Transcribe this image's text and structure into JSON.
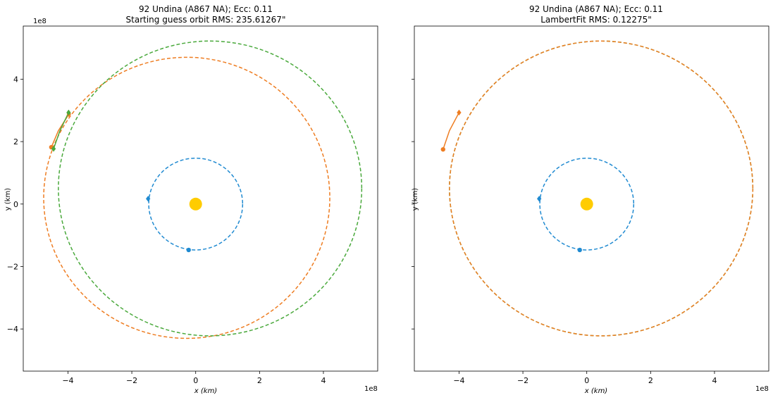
{
  "chart_data": [
    {
      "type": "scatter",
      "title_line1": "92 Undina (A867 NA); Ecc: 0.11",
      "title_line2": "Starting guess orbit RMS: 235.61267\"",
      "xlabel": "x (km)",
      "ylabel": "y (km)",
      "x_multiplier": "1e8",
      "y_multiplier": "1e8",
      "xlim": [
        -5.4,
        5.7
      ],
      "ylim": [
        -5.35,
        5.7
      ],
      "x_ticks": [
        -4,
        -2,
        0,
        2,
        4
      ],
      "y_ticks": [
        -4,
        -2,
        0,
        2,
        4
      ],
      "x_tick_labels": [
        "−4",
        "−2",
        "0",
        "2",
        "4"
      ],
      "y_tick_labels": [
        "−4",
        "−2",
        "0",
        "2",
        "4"
      ],
      "y_tick_labels_shown": true,
      "grid": false,
      "sun": {
        "x": 0,
        "y": 0,
        "color": "#FFCC00"
      },
      "orbits": [
        {
          "color": "#1f8ad1",
          "cx": 0,
          "cy": 0,
          "a": 1.47,
          "b": 1.47
        },
        {
          "color": "#ee7d22",
          "cx": -0.28,
          "cy": 0.2,
          "a": 4.48,
          "b": 4.5
        },
        {
          "color": "#4aa93c",
          "cx": 0.45,
          "cy": 0.5,
          "a": 4.75,
          "b": 4.72
        }
      ],
      "arcs": [
        {
          "color": "#ee7d22",
          "points": [
            [
              -4.52,
              1.82
            ],
            [
              -4.3,
              2.35
            ],
            [
              -3.97,
              2.88
            ]
          ]
        },
        {
          "color": "#4aa93c",
          "points": [
            [
              -4.45,
              1.77
            ],
            [
              -4.25,
              2.35
            ],
            [
              -3.98,
              2.93
            ]
          ]
        }
      ],
      "markers": [
        {
          "color": "#1f8ad1",
          "x": -1.49,
          "y": 0.17,
          "shape": "diamond"
        },
        {
          "color": "#1f8ad1",
          "x": -0.22,
          "y": -1.47,
          "shape": "circle"
        },
        {
          "color": "#ee7d22",
          "x": -3.97,
          "y": 2.88,
          "shape": "diamond"
        },
        {
          "color": "#4aa93c",
          "x": -3.98,
          "y": 2.93,
          "shape": "diamond"
        },
        {
          "color": "#ee7d22",
          "x": -4.52,
          "y": 1.82,
          "shape": "circle"
        },
        {
          "color": "#4aa93c",
          "x": -4.45,
          "y": 1.77,
          "shape": "diamond"
        }
      ]
    },
    {
      "type": "scatter",
      "title_line1": "92 Undina (A867 NA); Ecc: 0.11",
      "title_line2": "LambertFit RMS: 0.12275\"",
      "xlabel": "x (km)",
      "ylabel": "y (km)",
      "x_multiplier": "1e8",
      "y_multiplier": "",
      "xlim": [
        -5.4,
        5.7
      ],
      "ylim": [
        -5.35,
        5.7
      ],
      "x_ticks": [
        -4,
        -2,
        0,
        2,
        4
      ],
      "y_ticks": [
        -4,
        -2,
        0,
        2,
        4
      ],
      "x_tick_labels": [
        "−4",
        "−2",
        "0",
        "2",
        "4"
      ],
      "y_tick_labels": [],
      "y_tick_labels_shown": false,
      "grid": false,
      "sun": {
        "x": 0,
        "y": 0,
        "color": "#FFCC00"
      },
      "orbits": [
        {
          "color": "#1f8ad1",
          "cx": 0,
          "cy": 0,
          "a": 1.47,
          "b": 1.47
        },
        {
          "color": "#4aa93c",
          "cx": 0.45,
          "cy": 0.5,
          "a": 4.75,
          "b": 4.72
        },
        {
          "color": "#ee7d22",
          "cx": 0.45,
          "cy": 0.5,
          "a": 4.75,
          "b": 4.72
        }
      ],
      "arcs": [
        {
          "color": "#ee7d22",
          "points": [
            [
              -4.5,
              1.75
            ],
            [
              -4.3,
              2.35
            ],
            [
              -4.0,
              2.93
            ]
          ]
        }
      ],
      "markers": [
        {
          "color": "#1f8ad1",
          "x": -1.49,
          "y": 0.17,
          "shape": "diamond"
        },
        {
          "color": "#1f8ad1",
          "x": -0.22,
          "y": -1.47,
          "shape": "circle"
        },
        {
          "color": "#ee7d22",
          "x": -4.0,
          "y": 2.93,
          "shape": "diamond"
        },
        {
          "color": "#ee7d22",
          "x": -4.5,
          "y": 1.75,
          "shape": "circle"
        }
      ]
    }
  ]
}
